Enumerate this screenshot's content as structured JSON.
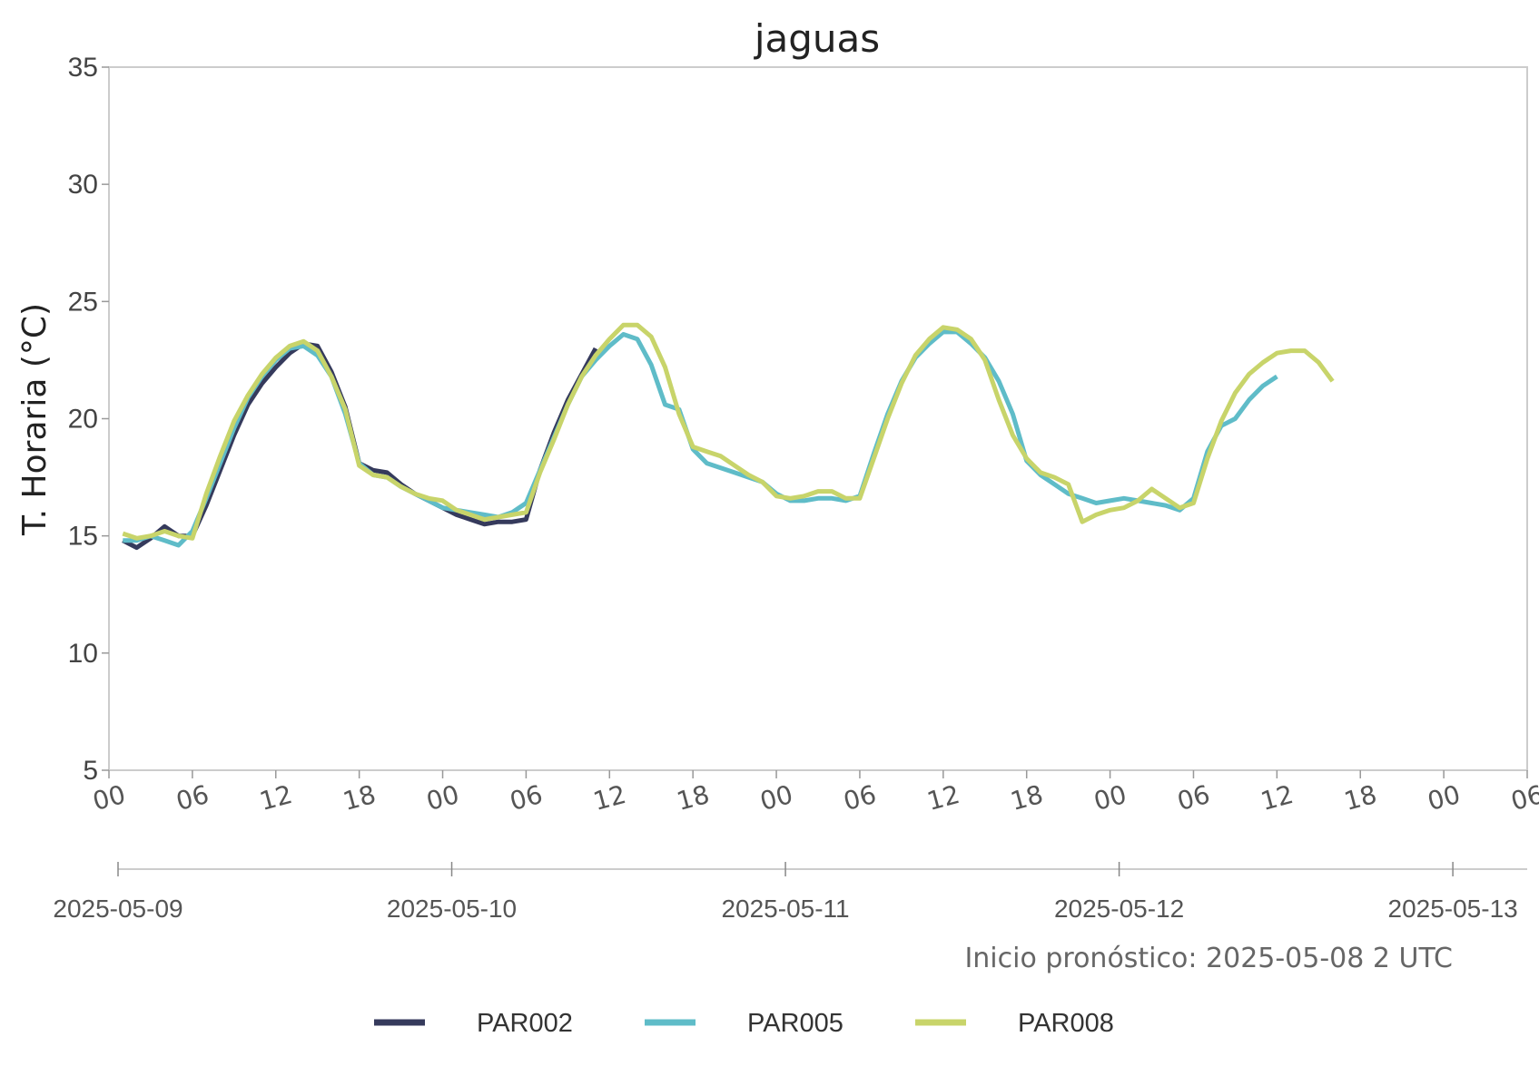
{
  "chart_data": {
    "type": "line",
    "title": "jaguas",
    "ylabel": "T. Horaria (°C)",
    "xlabel": "",
    "ylim": [
      5,
      35
    ],
    "yticks": [
      "5",
      "10",
      "15",
      "20",
      "25",
      "30",
      "35"
    ],
    "xlim": [
      "2025-05-09 00:00",
      "2025-05-13 06:00"
    ],
    "hour_tick_labels": [
      "00",
      "06",
      "12",
      "18",
      "00",
      "06",
      "12",
      "18",
      "00",
      "06",
      "12",
      "18",
      "00",
      "06",
      "12",
      "18",
      "00",
      "06"
    ],
    "date_tick_labels": [
      "2025-05-09",
      "2025-05-10",
      "2025-05-11",
      "2025-05-12",
      "2025-05-13"
    ],
    "grid": false,
    "legend_position": "bottom",
    "annotation": "Inicio pronóstico: 2025-05-08 2 UTC",
    "series": [
      {
        "name": "PAR002",
        "color": "#353a5c",
        "points": [
          [
            "2025-05-09 01:00",
            14.8
          ],
          [
            "2025-05-09 02:00",
            14.5
          ],
          [
            "2025-05-09 03:00",
            14.9
          ],
          [
            "2025-05-09 04:00",
            15.4
          ],
          [
            "2025-05-09 05:00",
            15.0
          ],
          [
            "2025-05-09 06:00",
            15.0
          ],
          [
            "2025-05-09 07:00",
            16.3
          ],
          [
            "2025-05-09 08:00",
            17.8
          ],
          [
            "2025-05-09 09:00",
            19.3
          ],
          [
            "2025-05-09 10:00",
            20.6
          ],
          [
            "2025-05-09 11:00",
            21.5
          ],
          [
            "2025-05-09 12:00",
            22.2
          ],
          [
            "2025-05-09 13:00",
            22.8
          ],
          [
            "2025-05-09 14:00",
            23.2
          ],
          [
            "2025-05-09 15:00",
            23.1
          ],
          [
            "2025-05-09 16:00",
            22.0
          ],
          [
            "2025-05-09 17:00",
            20.5
          ],
          [
            "2025-05-09 18:00",
            18.1
          ],
          [
            "2025-05-09 19:00",
            17.8
          ],
          [
            "2025-05-09 20:00",
            17.7
          ],
          [
            "2025-05-09 21:00",
            17.2
          ],
          [
            "2025-05-09 22:00",
            16.8
          ],
          [
            "2025-05-09 23:00",
            16.5
          ],
          [
            "2025-05-10 00:00",
            16.2
          ],
          [
            "2025-05-10 01:00",
            15.9
          ],
          [
            "2025-05-10 02:00",
            15.7
          ],
          [
            "2025-05-10 03:00",
            15.5
          ],
          [
            "2025-05-10 04:00",
            15.6
          ],
          [
            "2025-05-10 05:00",
            15.6
          ],
          [
            "2025-05-10 06:00",
            15.7
          ],
          [
            "2025-05-10 07:00",
            17.8
          ],
          [
            "2025-05-10 08:00",
            19.4
          ],
          [
            "2025-05-10 09:00",
            20.8
          ],
          [
            "2025-05-10 10:00",
            21.9
          ],
          [
            "2025-05-10 11:00",
            23.0
          ]
        ]
      },
      {
        "name": "PAR005",
        "color": "#5fbcc8",
        "points": [
          [
            "2025-05-09 01:00",
            14.8
          ],
          [
            "2025-05-09 02:00",
            14.8
          ],
          [
            "2025-05-09 03:00",
            15.0
          ],
          [
            "2025-05-09 04:00",
            14.8
          ],
          [
            "2025-05-09 05:00",
            14.6
          ],
          [
            "2025-05-09 06:00",
            15.2
          ],
          [
            "2025-05-09 07:00",
            16.6
          ],
          [
            "2025-05-09 08:00",
            18.1
          ],
          [
            "2025-05-09 09:00",
            19.6
          ],
          [
            "2025-05-09 10:00",
            20.9
          ],
          [
            "2025-05-09 11:00",
            21.8
          ],
          [
            "2025-05-09 12:00",
            22.5
          ],
          [
            "2025-05-09 13:00",
            23.0
          ],
          [
            "2025-05-09 14:00",
            23.1
          ],
          [
            "2025-05-09 15:00",
            22.7
          ],
          [
            "2025-05-09 16:00",
            21.8
          ],
          [
            "2025-05-09 17:00",
            20.2
          ],
          [
            "2025-05-09 18:00",
            18.1
          ],
          [
            "2025-05-09 19:00",
            17.6
          ],
          [
            "2025-05-09 20:00",
            17.5
          ],
          [
            "2025-05-09 21:00",
            17.1
          ],
          [
            "2025-05-09 22:00",
            16.8
          ],
          [
            "2025-05-09 23:00",
            16.5
          ],
          [
            "2025-05-10 00:00",
            16.2
          ],
          [
            "2025-05-10 01:00",
            16.1
          ],
          [
            "2025-05-10 02:00",
            16.0
          ],
          [
            "2025-05-10 03:00",
            15.9
          ],
          [
            "2025-05-10 04:00",
            15.8
          ],
          [
            "2025-05-10 05:00",
            16.0
          ],
          [
            "2025-05-10 06:00",
            16.4
          ],
          [
            "2025-05-10 07:00",
            17.8
          ],
          [
            "2025-05-10 08:00",
            19.2
          ],
          [
            "2025-05-10 09:00",
            20.6
          ],
          [
            "2025-05-10 10:00",
            21.8
          ],
          [
            "2025-05-10 11:00",
            22.5
          ],
          [
            "2025-05-10 12:00",
            23.1
          ],
          [
            "2025-05-10 13:00",
            23.6
          ],
          [
            "2025-05-10 14:00",
            23.4
          ],
          [
            "2025-05-10 15:00",
            22.3
          ],
          [
            "2025-05-10 16:00",
            20.6
          ],
          [
            "2025-05-10 17:00",
            20.4
          ],
          [
            "2025-05-10 18:00",
            18.7
          ],
          [
            "2025-05-10 19:00",
            18.1
          ],
          [
            "2025-05-10 20:00",
            17.9
          ],
          [
            "2025-05-10 21:00",
            17.7
          ],
          [
            "2025-05-10 22:00",
            17.5
          ],
          [
            "2025-05-10 23:00",
            17.3
          ],
          [
            "2025-05-11 00:00",
            16.8
          ],
          [
            "2025-05-11 01:00",
            16.5
          ],
          [
            "2025-05-11 02:00",
            16.5
          ],
          [
            "2025-05-11 03:00",
            16.6
          ],
          [
            "2025-05-11 04:00",
            16.6
          ],
          [
            "2025-05-11 05:00",
            16.5
          ],
          [
            "2025-05-11 06:00",
            16.7
          ],
          [
            "2025-05-11 07:00",
            18.5
          ],
          [
            "2025-05-11 08:00",
            20.2
          ],
          [
            "2025-05-11 09:00",
            21.6
          ],
          [
            "2025-05-11 10:00",
            22.6
          ],
          [
            "2025-05-11 11:00",
            23.2
          ],
          [
            "2025-05-11 12:00",
            23.7
          ],
          [
            "2025-05-11 13:00",
            23.7
          ],
          [
            "2025-05-11 14:00",
            23.2
          ],
          [
            "2025-05-11 15:00",
            22.6
          ],
          [
            "2025-05-11 16:00",
            21.6
          ],
          [
            "2025-05-11 17:00",
            20.2
          ],
          [
            "2025-05-11 18:00",
            18.2
          ],
          [
            "2025-05-11 19:00",
            17.6
          ],
          [
            "2025-05-11 20:00",
            17.2
          ],
          [
            "2025-05-11 21:00",
            16.8
          ],
          [
            "2025-05-11 22:00",
            16.6
          ],
          [
            "2025-05-11 23:00",
            16.4
          ],
          [
            "2025-05-12 00:00",
            16.5
          ],
          [
            "2025-05-12 01:00",
            16.6
          ],
          [
            "2025-05-12 02:00",
            16.5
          ],
          [
            "2025-05-12 03:00",
            16.4
          ],
          [
            "2025-05-12 04:00",
            16.3
          ],
          [
            "2025-05-12 05:00",
            16.1
          ],
          [
            "2025-05-12 06:00",
            16.6
          ],
          [
            "2025-05-12 07:00",
            18.6
          ],
          [
            "2025-05-12 08:00",
            19.7
          ],
          [
            "2025-05-12 09:00",
            20.0
          ],
          [
            "2025-05-12 10:00",
            20.8
          ],
          [
            "2025-05-12 11:00",
            21.4
          ],
          [
            "2025-05-12 12:00",
            21.8
          ]
        ]
      },
      {
        "name": "PAR008",
        "color": "#c8d46a",
        "points": [
          [
            "2025-05-09 01:00",
            15.1
          ],
          [
            "2025-05-09 02:00",
            14.9
          ],
          [
            "2025-05-09 03:00",
            15.0
          ],
          [
            "2025-05-09 04:00",
            15.2
          ],
          [
            "2025-05-09 05:00",
            15.0
          ],
          [
            "2025-05-09 06:00",
            14.9
          ],
          [
            "2025-05-09 07:00",
            16.8
          ],
          [
            "2025-05-09 08:00",
            18.4
          ],
          [
            "2025-05-09 09:00",
            19.9
          ],
          [
            "2025-05-09 10:00",
            21.0
          ],
          [
            "2025-05-09 11:00",
            21.9
          ],
          [
            "2025-05-09 12:00",
            22.6
          ],
          [
            "2025-05-09 13:00",
            23.1
          ],
          [
            "2025-05-09 14:00",
            23.3
          ],
          [
            "2025-05-09 15:00",
            22.9
          ],
          [
            "2025-05-09 16:00",
            21.8
          ],
          [
            "2025-05-09 17:00",
            20.4
          ],
          [
            "2025-05-09 18:00",
            18.0
          ],
          [
            "2025-05-09 19:00",
            17.6
          ],
          [
            "2025-05-09 20:00",
            17.5
          ],
          [
            "2025-05-09 21:00",
            17.1
          ],
          [
            "2025-05-09 22:00",
            16.8
          ],
          [
            "2025-05-09 23:00",
            16.6
          ],
          [
            "2025-05-10 00:00",
            16.5
          ],
          [
            "2025-05-10 01:00",
            16.1
          ],
          [
            "2025-05-10 02:00",
            15.9
          ],
          [
            "2025-05-10 03:00",
            15.7
          ],
          [
            "2025-05-10 04:00",
            15.8
          ],
          [
            "2025-05-10 05:00",
            15.9
          ],
          [
            "2025-05-10 06:00",
            16.0
          ],
          [
            "2025-05-10 07:00",
            17.7
          ],
          [
            "2025-05-10 08:00",
            19.1
          ],
          [
            "2025-05-10 09:00",
            20.6
          ],
          [
            "2025-05-10 10:00",
            21.8
          ],
          [
            "2025-05-10 11:00",
            22.7
          ],
          [
            "2025-05-10 12:00",
            23.4
          ],
          [
            "2025-05-10 13:00",
            24.0
          ],
          [
            "2025-05-10 14:00",
            24.0
          ],
          [
            "2025-05-10 15:00",
            23.5
          ],
          [
            "2025-05-10 16:00",
            22.2
          ],
          [
            "2025-05-10 17:00",
            20.2
          ],
          [
            "2025-05-10 18:00",
            18.8
          ],
          [
            "2025-05-10 19:00",
            18.6
          ],
          [
            "2025-05-10 20:00",
            18.4
          ],
          [
            "2025-05-10 21:00",
            18.0
          ],
          [
            "2025-05-10 22:00",
            17.6
          ],
          [
            "2025-05-10 23:00",
            17.3
          ],
          [
            "2025-05-11 00:00",
            16.7
          ],
          [
            "2025-05-11 01:00",
            16.6
          ],
          [
            "2025-05-11 02:00",
            16.7
          ],
          [
            "2025-05-11 03:00",
            16.9
          ],
          [
            "2025-05-11 04:00",
            16.9
          ],
          [
            "2025-05-11 05:00",
            16.6
          ],
          [
            "2025-05-11 06:00",
            16.6
          ],
          [
            "2025-05-11 07:00",
            18.3
          ],
          [
            "2025-05-11 08:00",
            20.0
          ],
          [
            "2025-05-11 09:00",
            21.5
          ],
          [
            "2025-05-11 10:00",
            22.7
          ],
          [
            "2025-05-11 11:00",
            23.4
          ],
          [
            "2025-05-11 12:00",
            23.9
          ],
          [
            "2025-05-11 13:00",
            23.8
          ],
          [
            "2025-05-11 14:00",
            23.4
          ],
          [
            "2025-05-11 15:00",
            22.5
          ],
          [
            "2025-05-11 16:00",
            20.8
          ],
          [
            "2025-05-11 17:00",
            19.3
          ],
          [
            "2025-05-11 18:00",
            18.3
          ],
          [
            "2025-05-11 19:00",
            17.7
          ],
          [
            "2025-05-11 20:00",
            17.5
          ],
          [
            "2025-05-11 21:00",
            17.2
          ],
          [
            "2025-05-11 22:00",
            15.6
          ],
          [
            "2025-05-11 23:00",
            15.9
          ],
          [
            "2025-05-12 00:00",
            16.1
          ],
          [
            "2025-05-12 01:00",
            16.2
          ],
          [
            "2025-05-12 02:00",
            16.5
          ],
          [
            "2025-05-12 03:00",
            17.0
          ],
          [
            "2025-05-12 04:00",
            16.6
          ],
          [
            "2025-05-12 05:00",
            16.2
          ],
          [
            "2025-05-12 06:00",
            16.4
          ],
          [
            "2025-05-12 07:00",
            18.3
          ],
          [
            "2025-05-12 08:00",
            19.9
          ],
          [
            "2025-05-12 09:00",
            21.1
          ],
          [
            "2025-05-12 10:00",
            21.9
          ],
          [
            "2025-05-12 11:00",
            22.4
          ],
          [
            "2025-05-12 12:00",
            22.8
          ],
          [
            "2025-05-12 13:00",
            22.9
          ],
          [
            "2025-05-12 14:00",
            22.9
          ],
          [
            "2025-05-12 15:00",
            22.4
          ],
          [
            "2025-05-12 16:00",
            21.6
          ]
        ]
      }
    ]
  }
}
